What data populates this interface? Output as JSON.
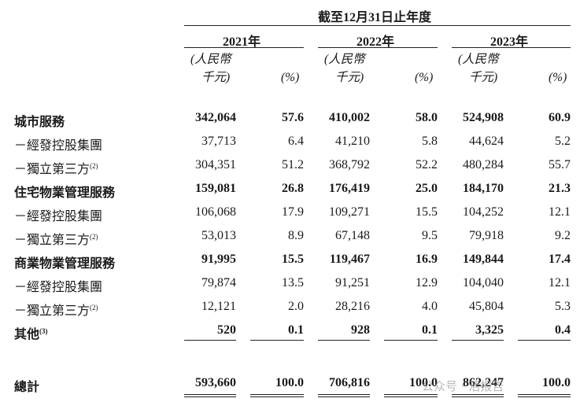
{
  "header": {
    "period": "截至12月31日止年度",
    "years": [
      "2021年",
      "2022年",
      "2023年"
    ],
    "unit_line1": "(人民幣",
    "unit_line2": "千元)",
    "pct": "(%)"
  },
  "rows": [
    {
      "label": "城市服務",
      "sup": "",
      "bold": true,
      "values": [
        "342,064",
        "57.6",
        "410,002",
        "58.0",
        "524,908",
        "60.9"
      ]
    },
    {
      "label": "－經發控股集團",
      "sup": "",
      "bold": false,
      "values": [
        "37,713",
        "6.4",
        "41,210",
        "5.8",
        "44,624",
        "5.2"
      ]
    },
    {
      "label": "－獨立第三方",
      "sup": "(2)",
      "bold": false,
      "values": [
        "304,351",
        "51.2",
        "368,792",
        "52.2",
        "480,284",
        "55.7"
      ]
    },
    {
      "label": "住宅物業管理服務",
      "sup": "",
      "bold": true,
      "values": [
        "159,081",
        "26.8",
        "176,419",
        "25.0",
        "184,170",
        "21.3"
      ]
    },
    {
      "label": "－經發控股集團",
      "sup": "",
      "bold": false,
      "values": [
        "106,068",
        "17.9",
        "109,271",
        "15.5",
        "104,252",
        "12.1"
      ]
    },
    {
      "label": "－獨立第三方",
      "sup": "(2)",
      "bold": false,
      "values": [
        "53,013",
        "8.9",
        "67,148",
        "9.5",
        "79,918",
        "9.2"
      ]
    },
    {
      "label": "商業物業管理服務",
      "sup": "",
      "bold": true,
      "values": [
        "91,995",
        "15.5",
        "119,467",
        "16.9",
        "149,844",
        "17.4"
      ]
    },
    {
      "label": "－經發控股集團",
      "sup": "",
      "bold": false,
      "values": [
        "79,874",
        "13.5",
        "91,251",
        "12.9",
        "104,040",
        "12.1"
      ]
    },
    {
      "label": "－獨立第三方",
      "sup": "(2)",
      "bold": false,
      "values": [
        "12,121",
        "2.0",
        "28,216",
        "4.0",
        "45,804",
        "5.3"
      ]
    },
    {
      "label": "其他",
      "sup": "(3)",
      "bold": true,
      "values": [
        "520",
        "0.1",
        "928",
        "0.1",
        "3,325",
        "0.4"
      ]
    }
  ],
  "total": {
    "label": "總計",
    "values": [
      "593,660",
      "100.0",
      "706,816",
      "100.0",
      "862,247",
      "100.0"
    ]
  },
  "watermark": "公众号 · 活报告"
}
